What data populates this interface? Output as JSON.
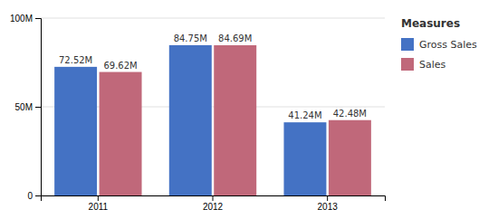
{
  "chart_data": {
    "type": "bar",
    "categories": [
      "2011",
      "2012",
      "2013"
    ],
    "series": [
      {
        "name": "Gross Sales",
        "color": "#4472C4",
        "values": [
          72.52,
          84.75,
          41.24
        ],
        "value_labels": [
          "72.52M",
          "84.75M",
          "41.24M"
        ]
      },
      {
        "name": "Sales",
        "color": "#C0687A",
        "values": [
          69.62,
          84.69,
          42.48
        ],
        "value_labels": [
          "69.62M",
          "84.69M",
          "42.48M"
        ]
      }
    ],
    "ylim": [
      0,
      100
    ],
    "yticks": [
      0,
      {
        "value": 50,
        "label": "50M"
      },
      {
        "value": 100,
        "label": "100M"
      }
    ],
    "grid": true,
    "data_labels": true,
    "legend": "upper right",
    "legend_title": "Measures"
  }
}
